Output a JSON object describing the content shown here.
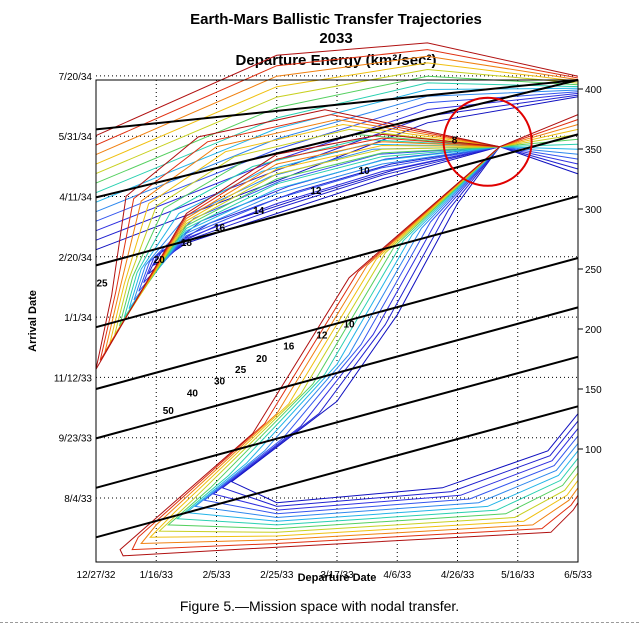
{
  "chart_data": {
    "type": "contour",
    "title": [
      "Earth-Mars Ballistic Transfer Trajectories",
      "2033",
      "Departure Energy (km²/sec²)"
    ],
    "xlabel": "Departure Date",
    "ylabel": "Arrival Date",
    "x_ticks": [
      "12/27/32",
      "1/16/33",
      "2/5/33",
      "2/25/33",
      "3/17/33",
      "4/6/33",
      "4/26/33",
      "5/16/33",
      "6/5/33"
    ],
    "y_ticks": [
      "8/4/33",
      "9/23/33",
      "11/12/33",
      "1/1/34",
      "2/20/34",
      "4/11/34",
      "5/31/34",
      "7/20/34"
    ],
    "x_range_days": [
      0,
      160
    ],
    "y_range_days": [
      180,
      570
    ],
    "y2_ticks": [
      "100",
      "150",
      "200",
      "250",
      "300",
      "350",
      "400"
    ],
    "grid": true,
    "contour_levels": [
      8,
      10,
      12,
      14,
      16,
      18,
      20,
      25,
      30,
      40,
      50
    ],
    "contour_labels": [
      {
        "text": "8",
        "x": 119,
        "y": 522
      },
      {
        "text": "10",
        "x": 89,
        "y": 497
      },
      {
        "text": "12",
        "x": 73,
        "y": 481
      },
      {
        "text": "14",
        "x": 54,
        "y": 465
      },
      {
        "text": "16",
        "x": 41,
        "y": 451
      },
      {
        "text": "18",
        "x": 30,
        "y": 439
      },
      {
        "text": "20",
        "x": 21,
        "y": 425
      },
      {
        "text": "25",
        "x": 2,
        "y": 406
      },
      {
        "text": "10",
        "x": 84,
        "y": 373
      },
      {
        "text": "12",
        "x": 75,
        "y": 364
      },
      {
        "text": "16",
        "x": 64,
        "y": 355
      },
      {
        "text": "20",
        "x": 55,
        "y": 345
      },
      {
        "text": "25",
        "x": 48,
        "y": 336
      },
      {
        "text": "30",
        "x": 41,
        "y": 327
      },
      {
        "text": "40",
        "x": 32,
        "y": 317
      },
      {
        "text": "50",
        "x": 24,
        "y": 303
      }
    ],
    "nodal_circle": {
      "x": 130,
      "y": 520
    }
  },
  "caption": "Figure 5.—Mission space with nodal transfer."
}
